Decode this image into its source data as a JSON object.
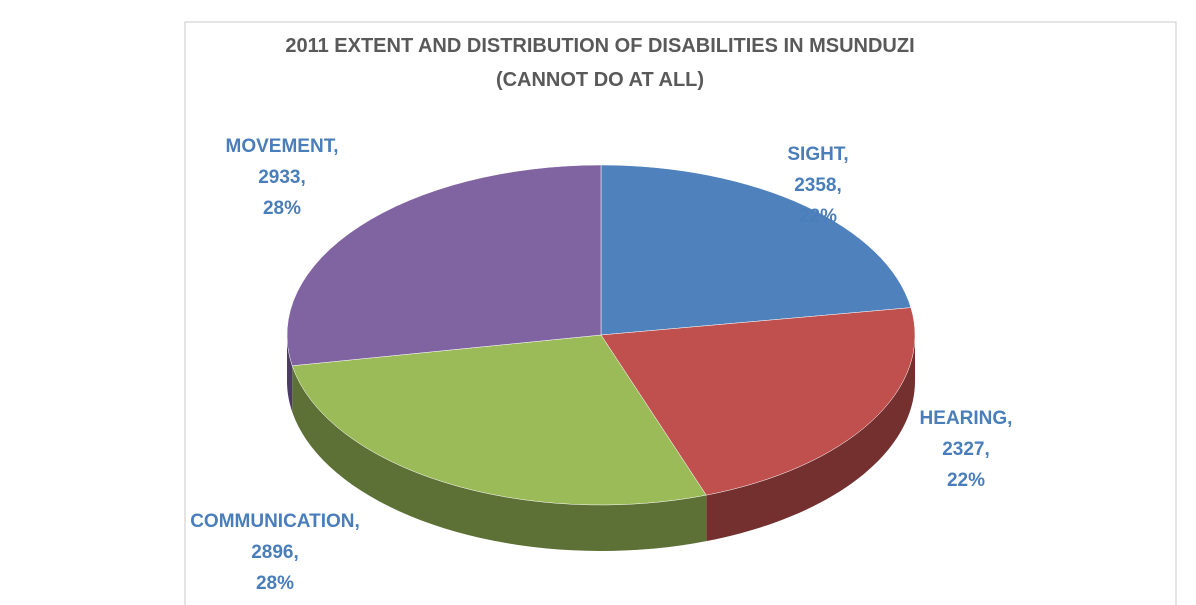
{
  "chart_data": {
    "type": "pie",
    "title": [
      "2011 EXTENT AND DISTRIBUTION OF DISABILITIES IN MSUNDUZI",
      "(CANNOT DO AT ALL)"
    ],
    "categories": [
      "SIGHT",
      "HEARING",
      "COMMUNICATION",
      "MOVEMENT"
    ],
    "values": [
      2358,
      2327,
      2896,
      2933
    ],
    "percentages": [
      22,
      22,
      28,
      28
    ],
    "percentage_labels": [
      "22%",
      "22%",
      "28%",
      "28%"
    ],
    "label_separator": ",",
    "colors": [
      "#4f81bd",
      "#c0504d",
      "#9bbb59",
      "#8064a2"
    ],
    "label_color": "#4a7ebb"
  }
}
